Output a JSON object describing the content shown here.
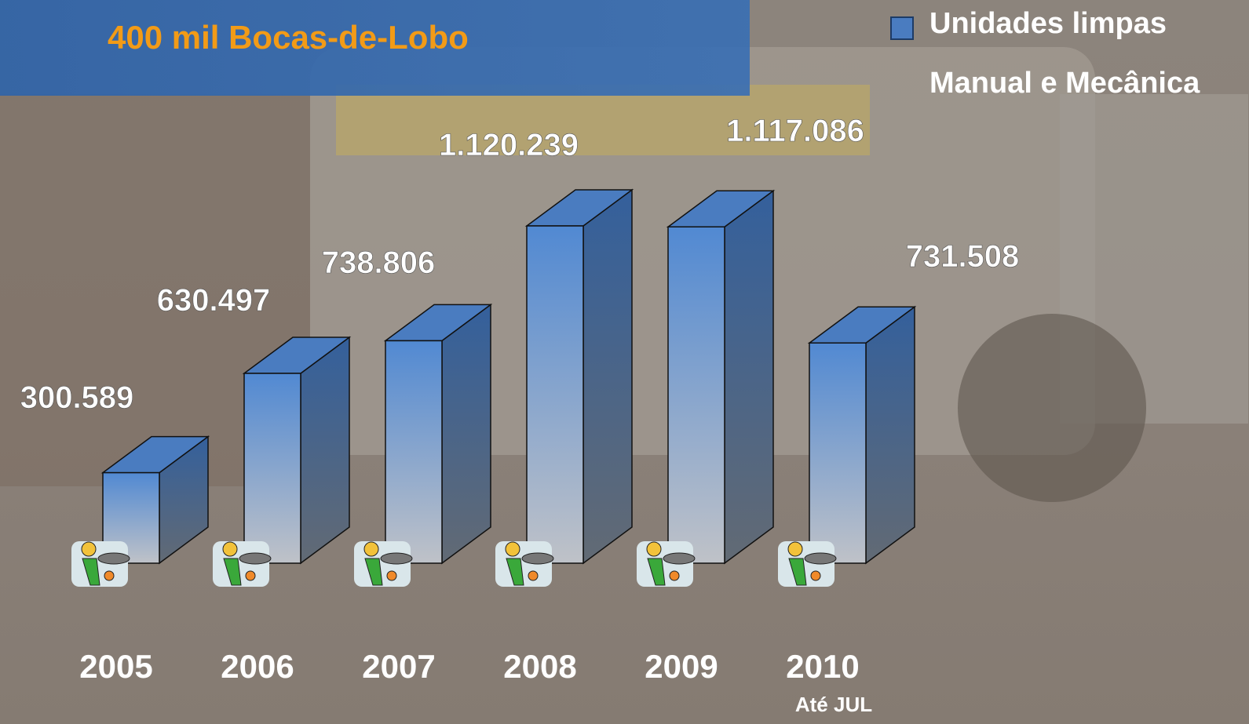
{
  "chart_data": {
    "type": "bar3d",
    "title": "400 mil Bocas-de-Lobo",
    "categories": [
      "2005",
      "2006",
      "2007",
      "2008",
      "2009",
      "2010"
    ],
    "series": [
      {
        "name": "Unidades limpas",
        "color": "#4a7cc0",
        "values": [
          300589,
          630497,
          738806,
          1120239,
          1117086,
          731508
        ],
        "value_labels": [
          "300.589",
          "630.497",
          "738.806",
          "1.120.239",
          "1.117.086",
          "731.508"
        ]
      }
    ],
    "subtitle": "Manual e Mecânica",
    "annotation": "Até JUL"
  }
}
